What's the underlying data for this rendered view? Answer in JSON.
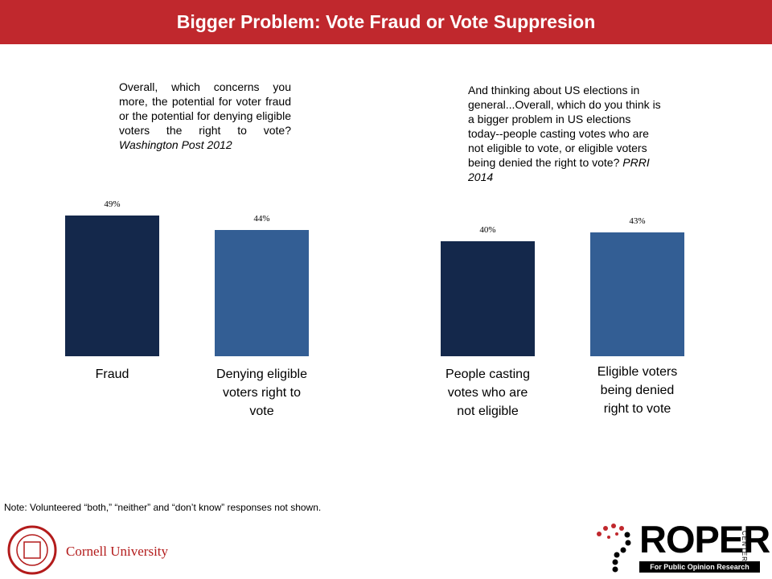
{
  "title": "Bigger Problem: Vote Fraud or Vote Suppresion",
  "chart_data": [
    {
      "type": "bar",
      "question": "Overall, which concerns you more, the potential for voter fraud or the potential for denying eligible voters the right to vote?",
      "source": "Washington Post 2012",
      "categories": [
        "Fraud",
        "Denying eligible voters right to vote"
      ],
      "values": [
        49,
        44
      ],
      "value_labels": [
        "49%",
        "44%"
      ],
      "colors": [
        "#14284b",
        "#335e94"
      ]
    },
    {
      "type": "bar",
      "question": "And thinking about US elections in general...Overall,  which do you think is a bigger problem in US elections today--people casting votes who are not eligible to vote, or eligible voters being denied the right to vote?",
      "source": "PRRI 2014",
      "categories": [
        "People casting votes who are not eligible",
        "Eligible voters being denied right to vote"
      ],
      "values": [
        40,
        43
      ],
      "value_labels": [
        "40%",
        "43%"
      ],
      "colors": [
        "#14284b",
        "#335e94"
      ]
    }
  ],
  "note": "Note:  Volunteered “both,” “neither” and “don’t know” responses not shown.",
  "logos": {
    "cornell": "Cornell University",
    "roper": "ROPER",
    "center": "CENTER",
    "tagline": "For Public Opinion Research"
  }
}
